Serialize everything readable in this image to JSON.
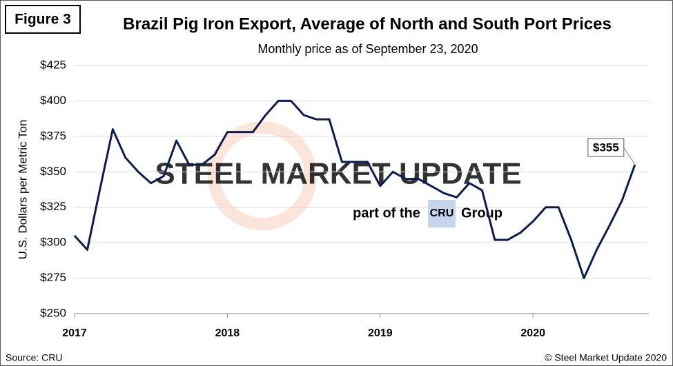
{
  "chart_data": {
    "type": "line",
    "figure_label": "Figure 3",
    "title": "Brazil Pig Iron Export, Average of North and South Port Prices",
    "subtitle": "Monthly price as of September 23, 2020",
    "y_label": "U.S. Dollars per Metric Ton",
    "source": "Source: CRU",
    "copyright": "© Steel Market Update 2020",
    "watermark": {
      "brand": "STEEL MARKET UPDATE",
      "prefix": "part of the",
      "logo": "CRU",
      "suffix": "Group"
    },
    "categories": [
      "2017",
      null,
      null,
      null,
      null,
      null,
      null,
      null,
      null,
      null,
      null,
      null,
      "2018",
      null,
      null,
      null,
      null,
      null,
      null,
      null,
      null,
      null,
      null,
      null,
      "2019",
      null,
      null,
      null,
      null,
      null,
      null,
      null,
      null,
      null,
      null,
      null,
      "2020",
      null,
      null,
      null,
      null,
      null,
      null,
      null,
      null
    ],
    "series": [
      {
        "name": "Average price",
        "color": "#0d1b4f",
        "values": [
          305,
          295,
          338,
          380,
          360,
          350,
          342,
          347,
          372,
          355,
          355,
          362,
          378,
          378,
          378,
          390,
          400,
          400,
          390,
          387,
          387,
          357,
          357,
          357,
          340,
          350,
          345,
          345,
          340,
          335,
          332,
          342,
          337,
          302,
          302,
          307,
          315,
          325,
          325,
          302,
          275,
          295,
          312,
          330,
          355
        ],
        "value_labels": [
          null,
          null,
          null,
          null,
          null,
          null,
          null,
          null,
          null,
          null,
          null,
          null,
          null,
          null,
          null,
          null,
          null,
          null,
          null,
          null,
          null,
          null,
          null,
          null,
          null,
          null,
          null,
          null,
          null,
          null,
          null,
          null,
          null,
          null,
          null,
          null,
          null,
          null,
          null,
          null,
          null,
          null,
          null,
          null,
          "$355"
        ]
      }
    ],
    "ylim": [
      250,
      425
    ],
    "yticks": [
      {
        "value": 250,
        "label": "$250"
      },
      {
        "value": 275,
        "label": "$275"
      },
      {
        "value": 300,
        "label": "$300"
      },
      {
        "value": 325,
        "label": "$325"
      },
      {
        "value": 350,
        "label": "$350"
      },
      {
        "value": 375,
        "label": "$375"
      },
      {
        "value": 400,
        "label": "$400"
      },
      {
        "value": 425,
        "label": "$425"
      }
    ],
    "grid": true
  }
}
